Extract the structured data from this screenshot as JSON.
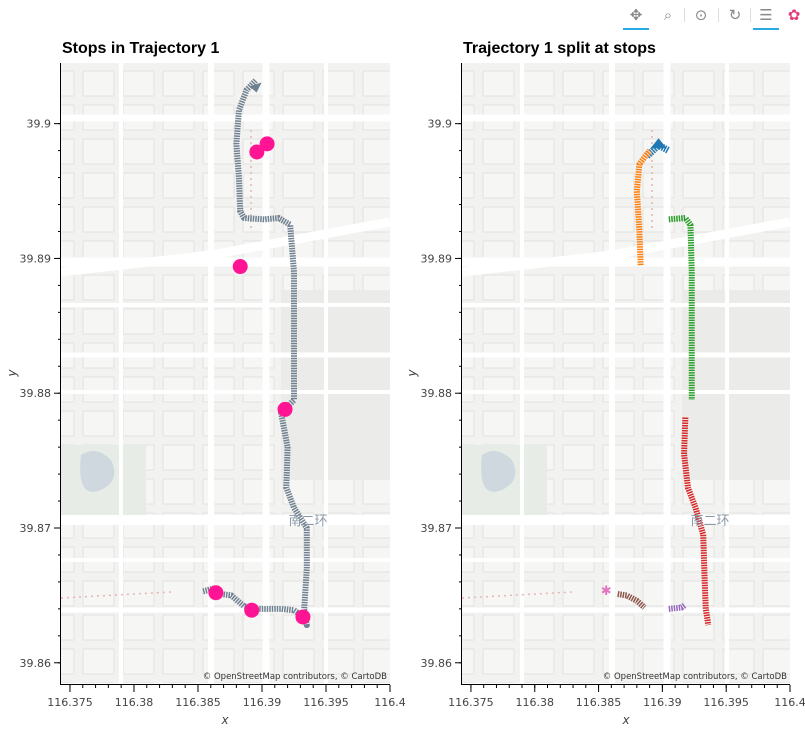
{
  "toolbar": {
    "tools": [
      {
        "name": "pan-tool-icon",
        "glyph": "✥",
        "active": true
      },
      {
        "name": "box-zoom-tool-icon",
        "glyph": "⌕",
        "active": false
      },
      {
        "name": "wheel-zoom-tool-icon",
        "glyph": "⊙",
        "active": false
      },
      {
        "name": "reset-tool-icon",
        "glyph": "↻",
        "active": false
      },
      {
        "name": "hover-tool-icon",
        "glyph": "☰",
        "active": true
      },
      {
        "name": "bokeh-logo-icon",
        "glyph": "✿",
        "active": false
      }
    ]
  },
  "panels": [
    {
      "title": "Stops in Trajectory 1",
      "xlabel": "x",
      "ylabel": "y",
      "attribution": "© OpenStreetMap contributors, © CartoDB"
    },
    {
      "title": "Trajectory 1 split at stops",
      "xlabel": "x",
      "ylabel": "y",
      "attribution": "© OpenStreetMap contributors, © CartoDB"
    }
  ],
  "map_labels": {
    "road_name": "南二环"
  },
  "chart_data": {
    "type": "line",
    "xlim": [
      116.3743,
      116.4
    ],
    "ylim": [
      39.8585,
      39.9045
    ],
    "x_ticks": [
      116.375,
      116.38,
      116.385,
      116.39,
      116.395,
      116.4
    ],
    "y_ticks": [
      39.86,
      39.87,
      39.88,
      39.89,
      39.9
    ],
    "trajectory": {
      "color": "#6f8190",
      "points": [
        [
          116.3854,
          39.8653
        ],
        [
          116.3862,
          39.8655
        ],
        [
          116.3868,
          39.8651
        ],
        [
          116.3876,
          39.865
        ],
        [
          116.3881,
          39.8646
        ],
        [
          116.3886,
          39.8642
        ],
        [
          116.3896,
          39.864
        ],
        [
          116.3905,
          39.864
        ],
        [
          116.3915,
          39.864
        ],
        [
          116.3925,
          39.8639
        ],
        [
          116.3933,
          39.8634
        ],
        [
          116.3935,
          39.8628
        ],
        [
          116.3933,
          39.864
        ],
        [
          116.3935,
          39.867
        ],
        [
          116.3935,
          39.87
        ],
        [
          116.3925,
          39.8715
        ],
        [
          116.3919,
          39.873
        ],
        [
          116.392,
          39.876
        ],
        [
          116.3915,
          39.8785
        ],
        [
          116.3925,
          39.8795
        ],
        [
          116.3925,
          39.884
        ],
        [
          116.3925,
          39.889
        ],
        [
          116.3922,
          39.8925
        ],
        [
          116.3913,
          39.893
        ],
        [
          116.3902,
          39.8929
        ],
        [
          116.3886,
          39.893
        ],
        [
          116.3883,
          39.8935
        ],
        [
          116.3882,
          39.896
        ],
        [
          116.388,
          39.8985
        ],
        [
          116.3882,
          39.901
        ],
        [
          116.3888,
          39.9025
        ],
        [
          116.3895,
          39.9032
        ]
      ]
    },
    "stops": {
      "color": "#ff1493",
      "points": [
        [
          116.3864,
          39.8652
        ],
        [
          116.3892,
          39.8639
        ],
        [
          116.3932,
          39.8634
        ],
        [
          116.3918,
          39.8788
        ],
        [
          116.3883,
          39.8894
        ],
        [
          116.3896,
          39.8979
        ],
        [
          116.3904,
          39.8985
        ]
      ]
    },
    "segments": [
      {
        "color": "#1f77b4",
        "points": [
          [
            116.3888,
            39.8976
          ],
          [
            116.3897,
            39.8984
          ],
          [
            116.3905,
            39.898
          ]
        ],
        "marker": "arrow"
      },
      {
        "color": "#ff7f0e",
        "points": [
          [
            116.3883,
            39.8895
          ],
          [
            116.3882,
            39.892
          ],
          [
            116.388,
            39.895
          ],
          [
            116.3882,
            39.897
          ],
          [
            116.389,
            39.898
          ]
        ]
      },
      {
        "color": "#2ca02c",
        "points": [
          [
            116.3905,
            39.8929
          ],
          [
            116.3918,
            39.893
          ],
          [
            116.3922,
            39.8925
          ],
          [
            116.3923,
            39.889
          ],
          [
            116.3923,
            39.884
          ],
          [
            116.3923,
            39.8795
          ]
        ]
      },
      {
        "color": "#d62728",
        "points": [
          [
            116.3918,
            39.8782
          ],
          [
            116.3917,
            39.8755
          ],
          [
            116.392,
            39.873
          ],
          [
            116.3926,
            39.8715
          ],
          [
            116.3932,
            39.8695
          ],
          [
            116.3933,
            39.8665
          ],
          [
            116.3934,
            39.864
          ],
          [
            116.3936,
            39.8628
          ]
        ]
      },
      {
        "color": "#9467bd",
        "points": [
          [
            116.3905,
            39.864
          ],
          [
            116.3915,
            39.8641
          ],
          [
            116.3918,
            39.8643
          ]
        ]
      },
      {
        "color": "#8c564b",
        "points": [
          [
            116.3865,
            39.8651
          ],
          [
            116.3872,
            39.865
          ],
          [
            116.388,
            39.8646
          ],
          [
            116.3886,
            39.8641
          ]
        ]
      },
      {
        "color": "#e377c2",
        "points": [
          [
            116.3856,
            39.8654
          ]
        ],
        "marker": "star"
      }
    ]
  }
}
